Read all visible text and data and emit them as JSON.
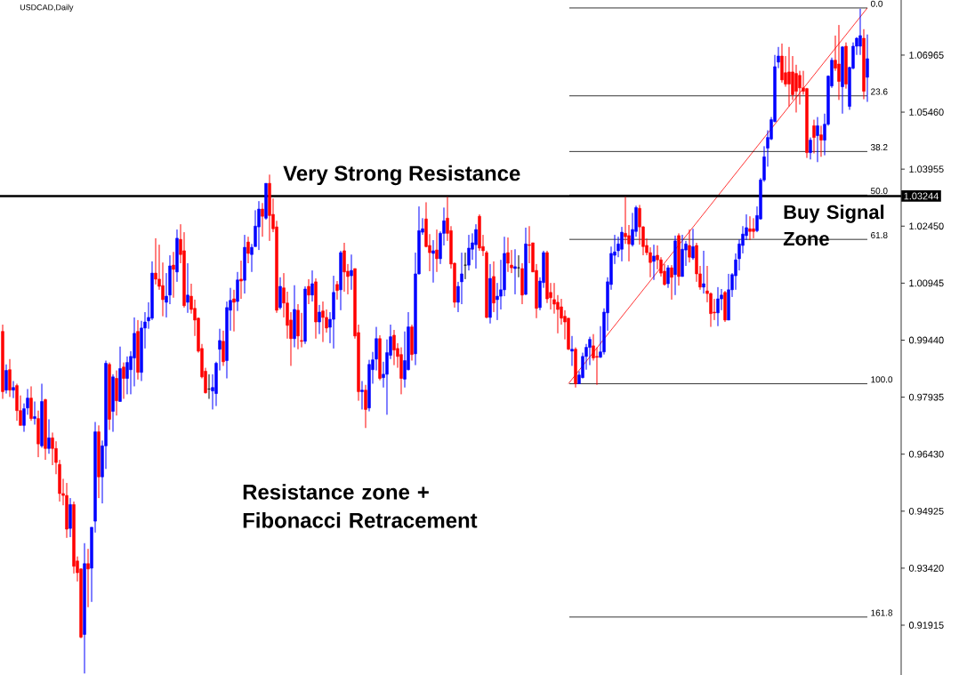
{
  "chart_data": {
    "type": "candlestick",
    "title": "USDCAD,Daily",
    "categories": [
      null,
      null,
      null,
      null,
      null,
      null,
      null,
      null,
      null,
      null,
      null,
      null,
      null,
      null,
      null,
      null,
      null,
      null,
      null,
      null,
      null,
      null,
      null,
      null,
      null,
      null,
      null,
      null,
      null,
      null,
      null,
      null,
      null,
      null,
      null,
      null,
      null,
      null,
      null,
      null,
      null,
      null,
      null,
      null,
      null,
      null,
      null,
      null,
      null,
      null,
      null,
      null,
      null,
      null,
      null,
      null,
      null,
      null,
      null,
      null,
      null,
      null,
      null,
      null,
      null,
      null,
      null,
      null,
      null,
      null,
      null,
      null,
      null,
      null,
      null,
      null,
      null,
      null,
      null,
      null,
      null,
      null,
      null,
      null,
      null,
      null,
      null,
      null,
      null,
      null,
      null,
      null,
      null,
      null,
      null,
      null,
      null,
      null,
      null,
      null,
      null,
      null,
      null,
      null,
      null,
      null,
      null,
      null,
      null,
      null,
      null,
      null,
      null,
      null,
      null,
      null,
      null,
      null,
      null,
      null,
      null,
      null,
      null,
      null,
      null,
      null,
      null,
      null,
      null,
      null,
      null,
      null,
      null,
      null,
      null,
      null,
      null,
      null,
      null,
      null,
      null,
      null,
      null,
      null,
      null,
      null,
      null,
      null,
      null,
      null,
      null,
      null,
      null,
      null,
      null,
      null,
      null,
      null,
      null,
      null,
      null,
      null,
      null,
      null,
      null,
      null,
      null,
      null,
      null,
      null,
      null,
      null,
      null,
      null,
      null,
      null,
      null,
      null,
      null,
      null,
      null,
      null,
      null,
      null,
      null,
      null,
      null,
      null,
      null,
      null,
      null,
      null,
      null,
      null,
      null,
      null,
      null,
      null,
      null,
      null,
      null,
      null,
      null,
      null,
      null,
      null,
      null,
      null,
      null,
      null,
      null,
      null,
      null,
      null,
      null,
      null,
      null,
      null,
      null,
      null,
      null,
      null,
      null,
      null,
      null,
      null,
      null,
      null,
      null,
      null,
      null,
      null,
      null,
      null,
      null,
      null,
      null,
      null,
      null,
      null,
      null,
      null,
      null,
      null
    ],
    "ohlc": [
      [
        0.9967,
        0.9985,
        0.9789,
        0.9808
      ],
      [
        0.9812,
        0.988,
        0.9803,
        0.9864
      ],
      [
        0.9866,
        0.9894,
        0.9794,
        0.9812
      ],
      [
        0.9812,
        0.9836,
        0.9791,
        0.9819
      ],
      [
        0.9824,
        0.9829,
        0.9731,
        0.9758
      ],
      [
        0.9758,
        0.9798,
        0.9719,
        0.9719
      ],
      [
        0.9719,
        0.9777,
        0.9702,
        0.9763
      ],
      [
        0.9765,
        0.9815,
        0.9747,
        0.9791
      ],
      [
        0.9791,
        0.9822,
        0.9731,
        0.9737
      ],
      [
        0.9737,
        0.9782,
        0.9721,
        0.9742
      ],
      [
        0.9737,
        0.9758,
        0.9635,
        0.967
      ],
      [
        0.9665,
        0.9829,
        0.966,
        0.9782
      ],
      [
        0.9787,
        0.9789,
        0.9628,
        0.9658
      ],
      [
        0.9658,
        0.9735,
        0.9644,
        0.9686
      ],
      [
        0.9686,
        0.97,
        0.9614,
        0.9658
      ],
      [
        0.9658,
        0.9677,
        0.959,
        0.9621
      ],
      [
        0.9616,
        0.9628,
        0.9518,
        0.9539
      ],
      [
        0.9539,
        0.9578,
        0.9508,
        0.9534
      ],
      [
        0.9534,
        0.9567,
        0.9422,
        0.9445
      ],
      [
        0.9447,
        0.9527,
        0.9424,
        0.951
      ],
      [
        0.951,
        0.9518,
        0.9328,
        0.9347
      ],
      [
        0.9361,
        0.9373,
        0.9307,
        0.933
      ],
      [
        0.934,
        0.9342,
        0.9157,
        0.916
      ],
      [
        0.9167,
        0.9408,
        0.9064,
        0.9354
      ],
      [
        0.9354,
        0.9393,
        0.9239,
        0.934
      ],
      [
        0.9342,
        0.945,
        0.9253,
        0.945
      ],
      [
        0.9466,
        0.9728,
        0.9436,
        0.9702
      ],
      [
        0.9702,
        0.9719,
        0.9527,
        0.9583
      ],
      [
        0.9583,
        0.9679,
        0.9513,
        0.9665
      ],
      [
        0.9665,
        0.989,
        0.9604,
        0.9883
      ],
      [
        0.988,
        0.9885,
        0.9707,
        0.9735
      ],
      [
        0.9756,
        0.9854,
        0.9702,
        0.9847
      ],
      [
        0.9843,
        0.9864,
        0.9745,
        0.9784
      ],
      [
        0.9782,
        0.9927,
        0.9782,
        0.9869
      ],
      [
        0.9873,
        0.9885,
        0.9789,
        0.9843
      ],
      [
        0.9843,
        0.9901,
        0.9801,
        0.9885
      ],
      [
        0.9866,
        0.9915,
        0.9801,
        0.9901
      ],
      [
        0.9897,
        1.0004,
        0.9822,
        0.9962
      ],
      [
        0.9967,
        0.9997,
        0.984,
        0.9859
      ],
      [
        0.9859,
        0.9995,
        0.9836,
        0.9976
      ],
      [
        0.9976,
        1.0018,
        0.9922,
        0.9992
      ],
      [
        0.9995,
        1.0044,
        0.9974,
        1.0004
      ],
      [
        1.0002,
        1.0152,
        0.9997,
        1.0121
      ],
      [
        1.0121,
        1.0213,
        1.0091,
        1.0105
      ],
      [
        1.0105,
        1.0196,
        1.0077,
        1.0086
      ],
      [
        1.0088,
        1.0149,
        1.0007,
        1.0051
      ],
      [
        1.0044,
        1.0121,
        1.0004,
        1.006
      ],
      [
        1.0063,
        1.0168,
        1.0039,
        1.014
      ],
      [
        1.0142,
        1.0177,
        1.0056,
        1.0131
      ],
      [
        1.0124,
        1.0236,
        1.0098,
        1.0213
      ],
      [
        1.021,
        1.025,
        1.0147,
        1.017
      ],
      [
        1.018,
        1.0229,
        1.003,
        1.0035
      ],
      [
        1.0044,
        1.0147,
        1.0016,
        1.0063
      ],
      [
        1.006,
        1.0093,
        1.0014,
        1.0025
      ],
      [
        1.0028,
        1.0051,
        0.9955,
        0.9997
      ],
      [
        1.0002,
        1.0004,
        0.9911,
        0.9915
      ],
      [
        0.9922,
        0.9934,
        0.9843,
        0.9847
      ],
      [
        0.9862,
        0.9871,
        0.9803,
        0.9805
      ],
      [
        0.9815,
        0.9854,
        0.9789,
        0.9815
      ],
      [
        0.981,
        0.9854,
        0.9761,
        0.9819
      ],
      [
        0.9803,
        0.9887,
        0.977,
        0.9883
      ],
      [
        0.992,
        0.9974,
        0.9864,
        0.9943
      ],
      [
        0.9941,
        0.9969,
        0.9876,
        0.9887
      ],
      [
        0.989,
        1.0046,
        0.9843,
        1.003
      ],
      [
        1.0023,
        1.0082,
        0.9969,
        1.0049
      ],
      [
        1.0053,
        1.0077,
        0.9967,
        1.0044
      ],
      [
        1.0046,
        1.0124,
        1.0021,
        1.0103
      ],
      [
        1.0105,
        1.0154,
        1.0053,
        1.01
      ],
      [
        1.0102,
        1.0222,
        1.0067,
        1.0189
      ],
      [
        1.0203,
        1.0217,
        1.0147,
        1.0173
      ],
      [
        1.017,
        1.0198,
        1.0124,
        1.0189
      ],
      [
        1.0191,
        1.0287,
        1.0191,
        1.0245
      ],
      [
        1.0243,
        1.0311,
        1.0182,
        1.029
      ],
      [
        1.029,
        1.0306,
        1.0217,
        1.0271
      ],
      [
        1.0266,
        1.0358,
        1.0262,
        1.0358
      ],
      [
        1.0358,
        1.0381,
        1.0206,
        1.0273
      ],
      [
        1.0276,
        1.0318,
        1.0229,
        1.0238
      ],
      [
        1.0243,
        1.0259,
        1.0016,
        1.0023
      ],
      [
        1.003,
        1.011,
        1.0025,
        1.0086
      ],
      [
        1.0082,
        1.0121,
        1.0004,
        1.0042
      ],
      [
        1.0042,
        1.0072,
        0.9948,
        0.9983
      ],
      [
        0.9997,
        1.0018,
        0.9876,
        0.9948
      ],
      [
        0.9948,
        1.0089,
        0.9925,
        1.0025
      ],
      [
        1.0023,
        1.0039,
        0.992,
        0.9955
      ],
      [
        0.9943,
        1.0016,
        0.9925,
        0.9941
      ],
      [
        0.9941,
        1.0086,
        0.9934,
        1.0079
      ],
      [
        1.0086,
        1.0105,
        1.0039,
        1.0063
      ],
      [
        1.0063,
        1.0128,
        1.0046,
        1.0093
      ],
      [
        1.0098,
        1.0107,
        0.9948,
        0.9992
      ],
      [
        0.9992,
        1.0037,
        0.996,
        1.0018
      ],
      [
        1.0021,
        1.0046,
        0.9939,
        1.0004
      ],
      [
        1.0004,
        1.0025,
        0.9964,
        0.9976
      ],
      [
        0.9978,
        1.0018,
        0.9936,
        0.9999
      ],
      [
        0.9999,
        1.0114,
        0.9922,
        1.007
      ],
      [
        1.0091,
        1.01,
        1.0051,
        1.0075
      ],
      [
        1.0077,
        1.018,
        1.0023,
        1.0175
      ],
      [
        1.018,
        1.0201,
        1.0072,
        1.0124
      ],
      [
        1.0126,
        1.0145,
        1.0065,
        1.0112
      ],
      [
        1.0114,
        1.017,
        1.0077,
        1.0128
      ],
      [
        1.0133,
        1.0133,
        0.9948,
        0.9955
      ],
      [
        0.9964,
        0.9985,
        0.9784,
        0.9808
      ],
      [
        0.9808,
        0.9836,
        0.9761,
        0.9812
      ],
      [
        0.9812,
        0.9826,
        0.9712,
        0.9761
      ],
      [
        0.9765,
        0.9892,
        0.9756,
        0.988
      ],
      [
        0.9866,
        0.9913,
        0.9829,
        0.9892
      ],
      [
        0.9894,
        0.9979,
        0.9864,
        0.9948
      ],
      [
        0.9948,
        0.9957,
        0.9838,
        0.9843
      ],
      [
        0.9845,
        0.9887,
        0.9819,
        0.9854
      ],
      [
        0.9854,
        0.9946,
        0.9747,
        0.9911
      ],
      [
        0.9904,
        0.9985,
        0.9894,
        0.9953
      ],
      [
        0.9957,
        0.9971,
        0.9878,
        0.9918
      ],
      [
        0.9922,
        0.9936,
        0.9871,
        0.9901
      ],
      [
        0.9906,
        0.9925,
        0.9801,
        0.9843
      ],
      [
        0.9841,
        0.9967,
        0.9819,
        0.989
      ],
      [
        0.9866,
        1.0018,
        0.9864,
        0.9979
      ],
      [
        0.9979,
        0.9985,
        0.989,
        0.9906
      ],
      [
        0.9908,
        1.0175,
        0.9878,
        1.0119
      ],
      [
        1.0119,
        1.0297,
        1.0117,
        1.0233
      ],
      [
        1.0229,
        1.0266,
        1.0222,
        1.0238
      ],
      [
        1.0264,
        1.0308,
        1.0189,
        1.0191
      ],
      [
        1.0194,
        1.0224,
        1.0126,
        1.0175
      ],
      [
        1.0173,
        1.0208,
        1.0096,
        1.018
      ],
      [
        1.0182,
        1.0236,
        1.0124,
        1.0159
      ],
      [
        1.0159,
        1.0231,
        1.0145,
        1.0226
      ],
      [
        1.0226,
        1.0294,
        1.0194,
        1.0259
      ],
      [
        1.0266,
        1.0322,
        1.0206,
        1.0226
      ],
      [
        1.0233,
        1.0245,
        1.0133,
        1.0145
      ],
      [
        1.0147,
        1.0149,
        1.003,
        1.0044
      ],
      [
        1.0044,
        1.0098,
        1.0018,
        1.0086
      ],
      [
        1.0098,
        1.0175,
        1.0039,
        1.0119
      ],
      [
        1.0142,
        1.0175,
        1.0105,
        1.0142
      ],
      [
        1.0142,
        1.0222,
        1.0128,
        1.0187
      ],
      [
        1.0184,
        1.0226,
        1.0156,
        1.0201
      ],
      [
        1.0196,
        1.025,
        1.0133,
        1.0236
      ],
      [
        1.0271,
        1.0276,
        1.018,
        1.0187
      ],
      [
        1.0191,
        1.0222,
        1.0166,
        1.018
      ],
      [
        1.0175,
        1.018,
        1.0002,
        1.0004
      ],
      [
        1.0004,
        1.0145,
        0.9988,
        1.0107
      ],
      [
        1.0112,
        1.0152,
        1.0018,
        1.0042
      ],
      [
        1.0051,
        1.0095,
        0.9997,
        1.006
      ],
      [
        1.006,
        1.0156,
        1.0025,
        1.0077
      ],
      [
        1.0077,
        1.0217,
        1.006,
        1.0173
      ],
      [
        1.0175,
        1.0215,
        1.0124,
        1.0147
      ],
      [
        1.0142,
        1.0182,
        1.0121,
        1.0135
      ],
      [
        1.0133,
        1.0184,
        1.0065,
        1.0138
      ],
      [
        1.0135,
        1.0168,
        1.011,
        1.0135
      ],
      [
        1.0133,
        1.0147,
        1.0039,
        1.0063
      ],
      [
        1.0065,
        1.0241,
        1.0063,
        1.0198
      ],
      [
        1.0196,
        1.0245,
        1.0147,
        1.0194
      ],
      [
        1.0201,
        1.0201,
        1.0124,
        1.0124
      ],
      [
        1.0128,
        1.0145,
        1.0002,
        1.0028
      ],
      [
        1.003,
        1.011,
        1.0023,
        1.01
      ],
      [
        1.0096,
        1.018,
        1.0082,
        1.0175
      ],
      [
        1.0175,
        1.018,
        1.0042,
        1.0053
      ],
      [
        1.007,
        1.0095,
        1.0025,
        1.0056
      ],
      [
        1.0051,
        1.0095,
        1.0014,
        1.0039
      ],
      [
        1.0044,
        1.0063,
        0.9962,
        1.0025
      ],
      [
        1.0032,
        1.0053,
        0.9985,
        1.0002
      ],
      [
        1.0007,
        1.0023,
        0.9946,
        0.9992
      ],
      [
        1.0002,
        1.0002,
        0.9918,
        0.992
      ],
      [
        0.9915,
        0.9955,
        0.9876,
        0.992
      ],
      [
        0.992,
        0.9925,
        0.9819,
        0.9829
      ],
      [
        0.9829,
        0.9862,
        0.9829,
        0.9852
      ],
      [
        0.9845,
        0.9911,
        0.9843,
        0.9901
      ],
      [
        0.9901,
        0.9934,
        0.9866,
        0.9925
      ],
      [
        0.9925,
        0.9953,
        0.9878,
        0.9946
      ],
      [
        0.9929,
        0.996,
        0.989,
        0.9897
      ],
      [
        0.9901,
        0.9925,
        0.9826,
        0.9899
      ],
      [
        0.9899,
        0.9981,
        0.9897,
        0.9913
      ],
      [
        0.9913,
        1.0028,
        0.9906,
        1.0018
      ],
      [
        1.0016,
        1.011,
        0.9969,
        1.0098
      ],
      [
        1.0091,
        1.0191,
        1.0077,
        1.0173
      ],
      [
        1.0168,
        1.0222,
        1.0145,
        1.0177
      ],
      [
        1.018,
        1.0217,
        1.0163,
        1.0198
      ],
      [
        1.0184,
        1.0243,
        1.0152,
        1.0229
      ],
      [
        1.0226,
        1.0322,
        1.0198,
        1.0217
      ],
      [
        1.022,
        1.0248,
        1.0152,
        1.0198
      ],
      [
        1.0196,
        1.028,
        1.0191,
        1.0236
      ],
      [
        1.0231,
        1.0299,
        1.0217,
        1.0294
      ],
      [
        1.0292,
        1.0301,
        1.0196,
        1.0243
      ],
      [
        1.0243,
        1.0245,
        1.0168,
        1.0191
      ],
      [
        1.0194,
        1.0212,
        1.0168,
        1.0175
      ],
      [
        1.0175,
        1.0189,
        1.011,
        1.0149
      ],
      [
        1.0152,
        1.0196,
        1.0103,
        1.0166
      ],
      [
        1.0168,
        1.0194,
        1.0131,
        1.0156
      ],
      [
        1.0156,
        1.0163,
        1.0112,
        1.0121
      ],
      [
        1.0126,
        1.0145,
        1.0088,
        1.0091
      ],
      [
        1.0093,
        1.0142,
        1.0082,
        1.0135
      ],
      [
        1.0135,
        1.0142,
        1.0051,
        1.011
      ],
      [
        1.0117,
        1.022,
        1.0063,
        1.0206
      ],
      [
        1.022,
        1.0226,
        1.0088,
        1.0112
      ],
      [
        1.0112,
        1.0222,
        1.0112,
        1.0184
      ],
      [
        1.0182,
        1.0206,
        1.014,
        1.0198
      ],
      [
        1.0194,
        1.0236,
        1.0149,
        1.0163
      ],
      [
        1.0161,
        1.0238,
        1.0156,
        1.0191
      ],
      [
        1.0194,
        1.0201,
        1.0098,
        1.0119
      ],
      [
        1.0119,
        1.014,
        1.0077,
        1.0084
      ],
      [
        1.0084,
        1.018,
        1.0067,
        1.0093
      ],
      [
        1.0074,
        1.014,
        1.0044,
        1.0067
      ],
      [
        1.0067,
        1.007,
        0.9979,
        1.0014
      ],
      [
        1.0018,
        1.0053,
        0.9997,
        1.0016
      ],
      [
        1.0016,
        1.0084,
        0.9981,
        1.0053
      ],
      [
        1.0053,
        1.0079,
        1.0023,
        1.0063
      ],
      [
        1.007,
        1.0074,
        0.9992,
        0.9997
      ],
      [
        0.9997,
        1.0119,
        0.9997,
        1.0077
      ],
      [
        1.0077,
        1.0121,
        1.0058,
        1.0117
      ],
      [
        1.0114,
        1.0173,
        1.0077,
        1.0156
      ],
      [
        1.0159,
        1.021,
        1.0128,
        1.0198
      ],
      [
        1.0194,
        1.0245,
        1.0173,
        1.0224
      ],
      [
        1.022,
        1.0276,
        1.0208,
        1.0241
      ],
      [
        1.0238,
        1.0271,
        1.0208,
        1.0231
      ],
      [
        1.0238,
        1.0266,
        1.0213,
        1.0231
      ],
      [
        1.0233,
        1.0297,
        1.0229,
        1.0273
      ],
      [
        1.0264,
        1.0372,
        1.0262,
        1.0367
      ],
      [
        1.0367,
        1.0456,
        1.0362,
        1.0428
      ],
      [
        1.0451,
        1.0498,
        1.0402,
        1.0479
      ],
      [
        1.0475,
        1.0533,
        1.0472,
        1.0526
      ],
      [
        1.0521,
        1.0697,
        1.0519,
        1.0666
      ],
      [
        1.0678,
        1.0718,
        1.0662,
        1.0694
      ],
      [
        1.0694,
        1.0727,
        1.0624,
        1.0631
      ],
      [
        1.065,
        1.0694,
        1.0613,
        1.062
      ],
      [
        1.0652,
        1.0718,
        1.0561,
        1.062
      ],
      [
        1.0652,
        1.0694,
        1.0578,
        1.0592
      ],
      [
        1.0648,
        1.0671,
        1.0545,
        1.0601
      ],
      [
        1.0643,
        1.0655,
        1.0566,
        1.061
      ],
      [
        1.061,
        1.0655,
        1.0592,
        1.0601
      ],
      [
        1.0608,
        1.061,
        1.0425,
        1.0439
      ],
      [
        1.0439,
        1.0479,
        1.0421,
        1.0472
      ],
      [
        1.051,
        1.0526,
        1.0437,
        1.0479
      ],
      [
        1.0484,
        1.0533,
        1.0414,
        1.051
      ],
      [
        1.0486,
        1.051,
        1.0428,
        1.0472
      ],
      [
        1.0472,
        1.0542,
        1.0432,
        1.0514
      ],
      [
        1.0514,
        1.0643,
        1.051,
        1.0641
      ],
      [
        1.0615,
        1.069,
        1.061,
        1.0683
      ],
      [
        1.0683,
        1.0748,
        1.0655,
        1.0662
      ],
      [
        1.0673,
        1.0776,
        1.0578,
        1.0627
      ],
      [
        1.0613,
        1.072,
        1.0542,
        1.0718
      ],
      [
        1.072,
        1.073,
        1.0608,
        1.062
      ],
      [
        1.0561,
        1.0666,
        1.0552,
        1.0664
      ],
      [
        1.0662,
        1.073,
        1.0659,
        1.072
      ],
      [
        1.072,
        1.0744,
        1.0697,
        1.0741
      ],
      [
        1.072,
        1.0819,
        1.0697,
        1.0748
      ],
      [
        1.0741,
        1.0765,
        1.058,
        1.0601
      ],
      [
        1.0638,
        1.0751,
        1.0573,
        1.0687
      ]
    ],
    "colors": [
      "#ff0000",
      "#0000ff",
      "#ff0000",
      "#0000ff",
      "#ff0000",
      "#ff0000",
      "#0000ff",
      "#0000ff",
      "#ff0000",
      "#0000ff",
      "#ff0000",
      "#0000ff",
      "#ff0000",
      "#0000ff",
      "#ff0000",
      "#ff0000",
      "#ff0000",
      "#ff0000",
      "#ff0000",
      "#0000ff",
      "#ff0000",
      "#ff0000",
      "#ff0000",
      "#0000ff",
      "#ff0000",
      "#0000ff",
      "#0000ff",
      "#ff0000",
      "#0000ff",
      "#0000ff",
      "#ff0000",
      "#0000ff",
      "#ff0000",
      "#0000ff",
      "#ff0000",
      "#0000ff",
      "#0000ff",
      "#0000ff",
      "#ff0000",
      "#0000ff",
      "#0000ff",
      "#0000ff",
      "#0000ff",
      "#ff0000",
      "#ff0000",
      "#ff0000",
      "#0000ff",
      "#0000ff",
      "#ff0000",
      "#0000ff",
      "#ff0000",
      "#ff0000",
      "#0000ff",
      "#ff0000",
      "#ff0000",
      "#ff0000",
      "#ff0000",
      "#ff0000",
      "#000000",
      "#0000ff",
      "#0000ff",
      "#0000ff",
      "#ff0000",
      "#0000ff",
      "#0000ff",
      "#ff0000",
      "#0000ff",
      "#ff0000",
      "#0000ff",
      "#ff0000",
      "#0000ff",
      "#0000ff",
      "#0000ff",
      "#ff0000",
      "#0000ff",
      "#ff0000",
      "#ff0000",
      "#ff0000",
      "#0000ff",
      "#ff0000",
      "#ff0000",
      "#ff0000",
      "#0000ff",
      "#ff0000",
      "#ff0000",
      "#0000ff",
      "#ff0000",
      "#0000ff",
      "#ff0000",
      "#0000ff",
      "#ff0000",
      "#ff0000",
      "#0000ff",
      "#0000ff",
      "#ff0000",
      "#0000ff",
      "#ff0000",
      "#ff0000",
      "#0000ff",
      "#ff0000",
      "#ff0000",
      "#0000ff",
      "#ff0000",
      "#0000ff",
      "#0000ff",
      "#0000ff",
      "#ff0000",
      "#0000ff",
      "#0000ff",
      "#0000ff",
      "#ff0000",
      "#ff0000",
      "#ff0000",
      "#0000ff",
      "#0000ff",
      "#ff0000",
      "#0000ff",
      "#0000ff",
      "#0000ff",
      "#ff0000",
      "#ff0000",
      "#0000ff",
      "#ff0000",
      "#0000ff",
      "#0000ff",
      "#ff0000",
      "#ff0000",
      "#ff0000",
      "#0000ff",
      "#0000ff",
      "#000000",
      "#0000ff",
      "#0000ff",
      "#0000ff",
      "#ff0000",
      "#ff0000",
      "#ff0000",
      "#0000ff",
      "#ff0000",
      "#0000ff",
      "#0000ff",
      "#0000ff",
      "#ff0000",
      "#ff0000",
      "#0000ff",
      "#000000",
      "#ff0000",
      "#0000ff",
      "#ff0000",
      "#ff0000",
      "#ff0000",
      "#0000ff",
      "#0000ff",
      "#ff0000",
      "#ff0000",
      "#ff0000",
      "#ff0000",
      "#ff0000",
      "#ff0000",
      "#ff0000",
      "#0000ff",
      "#ff0000",
      "#0000ff",
      "#0000ff",
      "#0000ff",
      "#0000ff",
      "#ff0000",
      "#ff0000",
      "#0000ff",
      "#0000ff",
      "#0000ff",
      "#0000ff",
      "#0000ff",
      "#0000ff",
      "#0000ff",
      "#ff0000",
      "#ff0000",
      "#0000ff",
      "#0000ff",
      "#ff0000",
      "#ff0000",
      "#ff0000",
      "#ff0000",
      "#0000ff",
      "#ff0000",
      "#ff0000",
      "#ff0000",
      "#0000ff",
      "#ff0000",
      "#0000ff",
      "#ff0000",
      "#0000ff",
      "#0000ff",
      "#ff0000",
      "#0000ff",
      "#ff0000",
      "#ff0000",
      "#0000ff",
      "#ff0000",
      "#ff0000",
      "#ff0000",
      "#0000ff",
      "#0000ff",
      "#ff0000",
      "#0000ff",
      "#0000ff",
      "#0000ff",
      "#0000ff",
      "#0000ff",
      "#0000ff",
      "#ff0000",
      "#ff0000",
      "#0000ff",
      "#0000ff",
      "#0000ff",
      "#0000ff",
      "#0000ff",
      "#0000ff",
      "#0000ff",
      "#ff0000",
      "#ff0000",
      "#ff0000",
      "#ff0000",
      "#ff0000",
      "#ff0000",
      "#ff0000",
      "#ff0000",
      "#0000ff",
      "#ff0000",
      "#0000ff",
      "#ff0000",
      "#0000ff",
      "#0000ff",
      "#0000ff",
      "#ff0000",
      "#ff0000",
      "#0000ff",
      "#ff0000",
      "#0000ff",
      "#0000ff",
      "#0000ff",
      "#0000ff",
      "#ff0000",
      "#0000ff"
    ],
    "series": [
      {
        "type": "line",
        "color": "#ff0000",
        "values": [
          null,
          null,
          null,
          null,
          null,
          null,
          null,
          null,
          null,
          null,
          null,
          null,
          null,
          null,
          null,
          null,
          null,
          null,
          null,
          null,
          null,
          null,
          null,
          null,
          null,
          null,
          null,
          null,
          null,
          null,
          null,
          null,
          null,
          null,
          null,
          null,
          null,
          null,
          null,
          null,
          null,
          null,
          null,
          null,
          null,
          null,
          null,
          null,
          null,
          null,
          null,
          null,
          null,
          null,
          null,
          null,
          null,
          null,
          null,
          null,
          null,
          null,
          null,
          null,
          null,
          null,
          null,
          null,
          null,
          null,
          null,
          null,
          null,
          null,
          null,
          null,
          null,
          null,
          null,
          null,
          null,
          null,
          null,
          null,
          null,
          null,
          null,
          null,
          null,
          null,
          null,
          null,
          null,
          null,
          null,
          null,
          null,
          null,
          null,
          null,
          null,
          null,
          null,
          null,
          null,
          null,
          null,
          null,
          null,
          null,
          null,
          null,
          null,
          null,
          null,
          null,
          null,
          null,
          null,
          null,
          null,
          null,
          null,
          null,
          null,
          null,
          null,
          null,
          null,
          null,
          null,
          null,
          null,
          null,
          null,
          null,
          null,
          null,
          null,
          null,
          null,
          null,
          null,
          null,
          null,
          null,
          null,
          null,
          null,
          null,
          null,
          null,
          null,
          null,
          null,
          null,
          null,
          null,
          null,
          0.9829,
          null,
          null,
          null,
          null,
          null,
          null,
          null,
          null,
          null,
          null,
          null,
          null,
          null,
          null,
          null,
          null,
          null,
          null,
          null,
          null,
          null,
          null,
          null,
          null,
          null,
          null,
          null,
          null,
          null,
          null,
          null,
          null,
          null,
          null,
          null,
          null,
          null,
          null,
          null,
          null,
          null,
          null,
          null,
          null,
          null,
          null,
          null,
          null,
          null,
          null,
          null,
          null,
          null,
          null,
          null,
          null,
          null,
          null,
          null,
          null,
          null,
          null,
          null,
          null,
          null,
          null,
          null,
          null,
          null,
          null,
          null,
          null,
          null,
          null,
          null,
          null,
          null,
          null,
          null,
          null,
          null,
          null,
          null,
          1.0821
        ]
      }
    ],
    "ylim": [
      0.906,
      1.0842
    ],
    "yticks": [
      {
        "value": 1.06965,
        "label": "1.06965"
      },
      {
        "value": 1.0546,
        "label": "1.05460"
      },
      {
        "value": 1.03955,
        "label": "1.03955"
      },
      {
        "value": 1.0245,
        "label": "1.02450"
      },
      {
        "value": 1.00945,
        "label": "1.00945"
      },
      {
        "value": 0.9944,
        "label": "0.99440"
      },
      {
        "value": 0.97935,
        "label": "0.97935"
      },
      {
        "value": 0.9643,
        "label": "0.96430"
      },
      {
        "value": 0.94925,
        "label": "0.94925"
      },
      {
        "value": 0.9342,
        "label": "0.93420"
      },
      {
        "value": 0.91915,
        "label": "0.91915"
      }
    ],
    "tick_labels": "y",
    "ref_lines": [
      {
        "axis": "y",
        "value": 1.03244,
        "label": "1.03244",
        "color": "#000000"
      },
      {
        "axis": "y",
        "value": 1.0821,
        "color": "#000000"
      },
      {
        "axis": "y",
        "value": 1.0589,
        "color": "#000000"
      },
      {
        "axis": "y",
        "value": 1.0442,
        "color": "#000000"
      },
      {
        "axis": "y",
        "value": 1.0327,
        "color": "#000000"
      },
      {
        "axis": "y",
        "value": 1.021,
        "color": "#000000"
      },
      {
        "axis": "y",
        "value": 0.9829,
        "color": "#000000"
      },
      {
        "axis": "y",
        "value": 0.9213,
        "color": "#000000"
      }
    ],
    "annotations": [
      "Very Strong Resistance",
      "Buy Signal Zone",
      "Resistance zone + Fibonacci Retracement",
      "0.0",
      "23.6",
      "38.2",
      "50.0",
      "61.8",
      "100.0",
      "161.8"
    ]
  }
}
